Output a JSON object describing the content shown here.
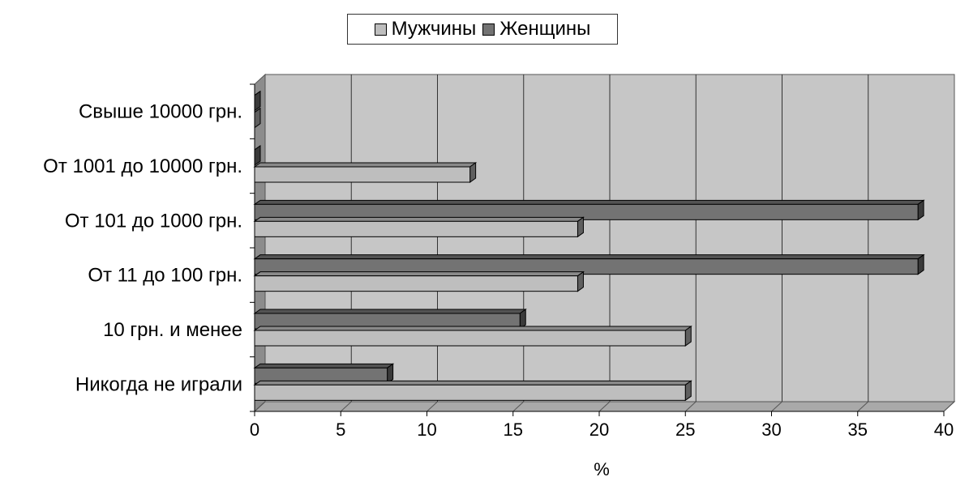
{
  "chart_data": {
    "type": "bar",
    "orientation": "horizontal",
    "style": "3d-clustered",
    "categories": [
      "Никогда не играли",
      "10 грн. и менее",
      "От 11 до 100 грн.",
      "От 101 до 1000 грн.",
      "От 1001 до 10000 грн.",
      "Свыше 10000 грн."
    ],
    "series": [
      {
        "name": "Мужчины",
        "values": [
          25,
          25,
          18.75,
          18.75,
          12.5,
          0
        ],
        "color": "#bebebe"
      },
      {
        "name": "Женщины",
        "values": [
          7.7,
          15.4,
          38.5,
          38.5,
          0,
          0
        ],
        "color": "#737373"
      }
    ],
    "xlabel": "%",
    "xlim": [
      0,
      40
    ],
    "xticks": [
      "0",
      "5",
      "10",
      "15",
      "20",
      "25",
      "30",
      "35",
      "40"
    ],
    "grid": true,
    "legend": "top-center",
    "plot_background": "#c6c6c6"
  }
}
